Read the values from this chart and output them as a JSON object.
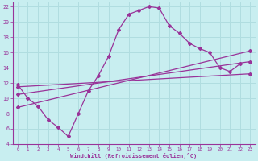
{
  "xlabel": "Windchill (Refroidissement éolien,°C)",
  "background_color": "#c8eef0",
  "grid_color": "#b0dde0",
  "line_color": "#993399",
  "xlim": [
    -0.5,
    23.5
  ],
  "ylim": [
    4,
    22.5
  ],
  "xticks": [
    0,
    1,
    2,
    3,
    4,
    5,
    6,
    7,
    8,
    9,
    10,
    11,
    12,
    13,
    14,
    15,
    16,
    17,
    18,
    19,
    20,
    21,
    22,
    23
  ],
  "yticks": [
    4,
    6,
    8,
    10,
    12,
    14,
    16,
    18,
    20,
    22
  ],
  "line1_x": [
    0,
    1,
    2,
    3,
    4,
    5,
    6,
    7,
    8,
    9,
    10,
    11,
    12,
    13,
    14,
    15,
    16,
    17,
    18,
    19,
    20,
    21,
    22
  ],
  "line1_y": [
    11.8,
    10,
    9,
    7.2,
    6.2,
    5,
    8,
    11,
    13,
    15.5,
    19,
    21,
    21.5,
    22,
    21.8,
    19.5,
    18.5,
    17.2,
    16.5,
    16,
    14,
    13.5,
    14.5
  ],
  "line2_x": [
    0,
    23
  ],
  "line2_y": [
    8.8,
    16.2
  ],
  "line3_x": [
    0,
    23
  ],
  "line3_y": [
    10.5,
    14.8
  ],
  "line4_x": [
    0,
    23
  ],
  "line4_y": [
    11.5,
    13.2
  ]
}
